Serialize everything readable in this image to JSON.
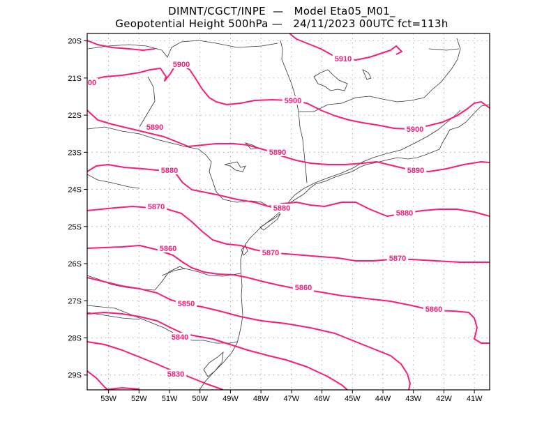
{
  "header": {
    "line1": "DIMNT/CGCT/INPE  —   Model Eta05_M01_",
    "line2": "Geopotential Height 500hPa —   24/11/2023 00UTC fct=113h"
  },
  "colors": {
    "contour": "#ff1a75",
    "coast": "#333333",
    "grid": "#999999",
    "frame": "#000000"
  },
  "map": {
    "projection": "lat-lon",
    "lon_range": [
      -53.7,
      -40.5
    ],
    "lat_range": [
      -29.4,
      -19.8
    ],
    "grid": "dotted 1-degree",
    "x_ticks": [
      "53W",
      "52W",
      "51W",
      "50W",
      "49W",
      "48W",
      "47W",
      "46W",
      "45W",
      "44W",
      "43W",
      "42W",
      "41W"
    ],
    "y_ticks": [
      "20S",
      "21S",
      "22S",
      "23S",
      "24S",
      "25S",
      "26S",
      "27S",
      "28S",
      "29S"
    ],
    "contour_labels": [
      "00",
      "5900",
      "5910",
      "5900",
      "5890",
      "5890",
      "5900",
      "5890",
      "5880",
      "5880",
      "5880",
      "5870",
      "5870",
      "5860",
      "5870",
      "5860",
      "5850",
      "5860",
      "5840",
      "5830"
    ]
  }
}
